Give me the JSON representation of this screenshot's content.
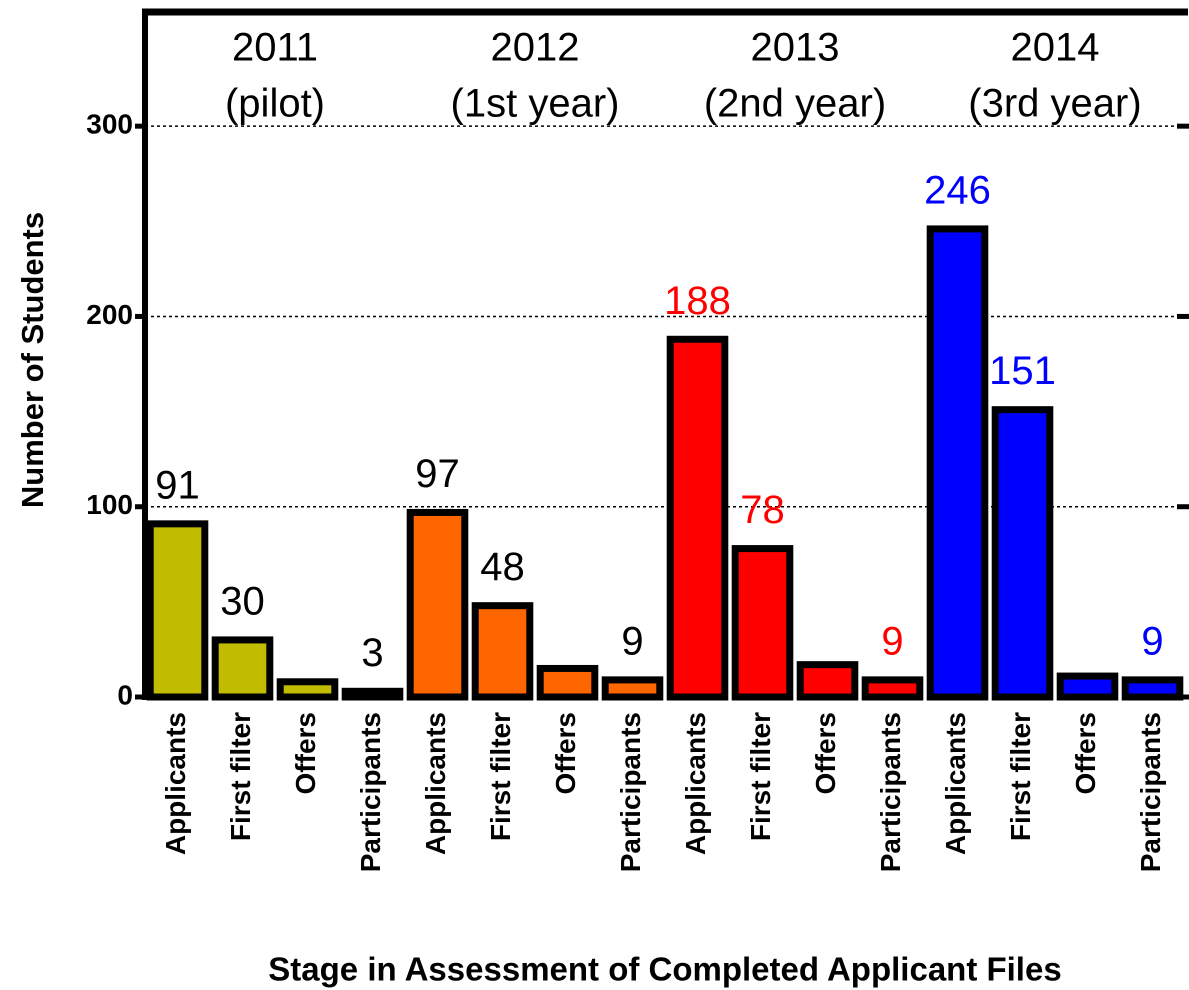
{
  "chart_data": {
    "type": "bar",
    "y_label": "Number of Students",
    "x_label": "Stage in Assessment of Completed Applicant Files",
    "categories": [
      "Applicants",
      "First filter",
      "Offers",
      "Participants"
    ],
    "series": [
      {
        "name": "2011",
        "subtitle": "(pilot)",
        "color": "#c2bc00",
        "label_color": "#000000",
        "values": [
          91,
          30,
          8,
          3
        ],
        "value_labels": [
          "91",
          "30",
          null,
          "3"
        ]
      },
      {
        "name": "2012",
        "subtitle": "(1st year)",
        "color": "#ff6600",
        "label_color": "#000000",
        "values": [
          97,
          48,
          15,
          9
        ],
        "value_labels": [
          "97",
          "48",
          null,
          "9"
        ]
      },
      {
        "name": "2013",
        "subtitle": "(2nd year)",
        "color": "#ff0000",
        "label_color": "#ff0000",
        "values": [
          188,
          78,
          17,
          9
        ],
        "value_labels": [
          "188",
          "78",
          null,
          "9"
        ]
      },
      {
        "name": "2014",
        "subtitle": "(3rd year)",
        "color": "#0000ff",
        "label_color": "#0000ff",
        "values": [
          246,
          151,
          11,
          9
        ],
        "value_labels": [
          "246",
          "151",
          null,
          "9"
        ]
      }
    ],
    "ylim": [
      0,
      360
    ],
    "yticks": [
      0,
      100,
      200,
      300
    ],
    "grid": true
  }
}
